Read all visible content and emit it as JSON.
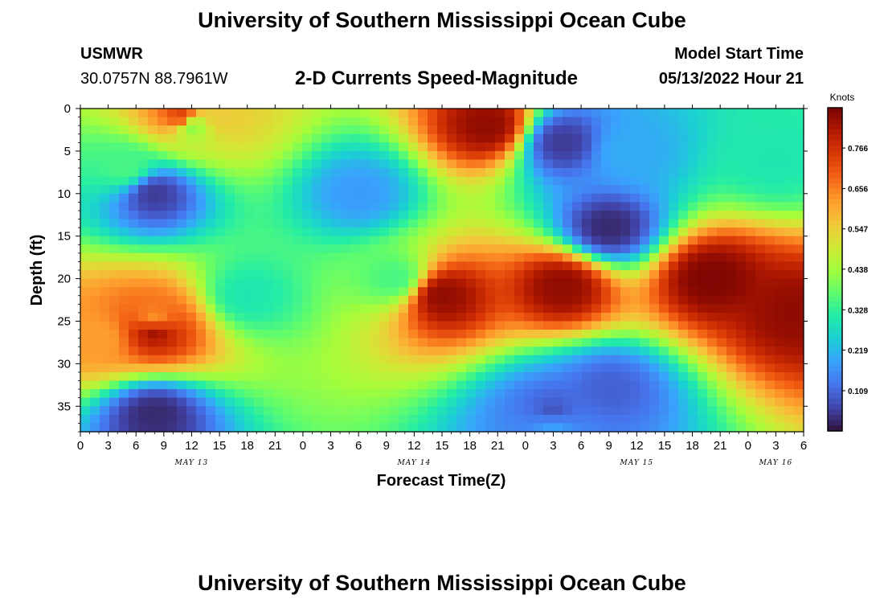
{
  "header": {
    "title": "University of Southern Mississippi Ocean Cube",
    "station": "USMWR",
    "coords": "30.0757N  88.7961W",
    "subtitle": "2-D Currents Speed-Magnitude",
    "model_label": "Model Start Time",
    "model_time": "05/13/2022 Hour 21"
  },
  "footer": {
    "title": "University of Southern Mississippi Ocean Cube"
  },
  "colors": {
    "background": "#ffffff",
    "colormap": [
      "#30123b",
      "#4145ab",
      "#4675ed",
      "#39a2fc",
      "#1bcfd4",
      "#24eca6",
      "#61fc6c",
      "#a4fc3b",
      "#d1e834",
      "#f3c63a",
      "#fe9b2d",
      "#f36315",
      "#d93806",
      "#b11901",
      "#7a0402"
    ]
  },
  "chart_data": {
    "type": "heatmap",
    "title": "2-D Currents Speed-Magnitude",
    "xlabel": "Forecast Time(Z)",
    "ylabel": "Depth (ft)",
    "x_tick_labels": [
      "0",
      "3",
      "6",
      "9",
      "12",
      "15",
      "18",
      "21",
      "0",
      "3",
      "6",
      "9",
      "12",
      "15",
      "18",
      "21",
      "0",
      "3",
      "6",
      "9",
      "12",
      "15",
      "18",
      "21",
      "0",
      "3",
      "6"
    ],
    "x_range_hours": [
      0,
      78
    ],
    "date_labels": [
      {
        "text": "MAY 13",
        "hour": 12
      },
      {
        "text": "MAY 14",
        "hour": 36
      },
      {
        "text": "MAY 15",
        "hour": 60
      },
      {
        "text": "MAY 16",
        "hour": 75
      }
    ],
    "y_ticks": [
      0,
      5,
      10,
      15,
      20,
      25,
      30,
      35
    ],
    "ylim": [
      0,
      38
    ],
    "y_inverted": true,
    "colorbar": {
      "title": "Knots",
      "ticks": [
        "0.766",
        "0.656",
        "0.547",
        "0.438",
        "0.328",
        "0.219",
        "0.109"
      ],
      "tick_values": [
        0.766,
        0.656,
        0.547,
        0.438,
        0.328,
        0.219,
        0.109
      ],
      "range": [
        0,
        0.875
      ]
    },
    "field_features": [
      {
        "hour": 8,
        "depth": 10,
        "speed": 0.05
      },
      {
        "hour": 15,
        "depth": 1,
        "speed": 0.55
      },
      {
        "hour": 18,
        "depth": 22,
        "speed": 0.3
      },
      {
        "hour": 30,
        "depth": 10,
        "speed": 0.18
      },
      {
        "hour": 34,
        "depth": 20,
        "speed": 0.35
      },
      {
        "hour": 2,
        "depth": 27,
        "speed": 0.62
      },
      {
        "hour": 8,
        "depth": 25,
        "speed": 0.62
      },
      {
        "hour": 8,
        "depth": 36,
        "speed": 0.03
      },
      {
        "hour": 5,
        "depth": 7,
        "speed": 0.35
      },
      {
        "hour": 12,
        "depth": 2,
        "speed": 0.4
      },
      {
        "hour": 11,
        "depth": 1,
        "speed": 0.75
      },
      {
        "hour": 8,
        "depth": 26,
        "speed": 0.85
      },
      {
        "hour": 39,
        "depth": 22,
        "speed": 0.85
      },
      {
        "hour": 44,
        "depth": 2,
        "speed": 0.85
      },
      {
        "hour": 52,
        "depth": 21,
        "speed": 0.85
      },
      {
        "hour": 52,
        "depth": 4,
        "speed": 0.05
      },
      {
        "hour": 57,
        "depth": 14,
        "speed": 0.03
      },
      {
        "hour": 51,
        "depth": 37,
        "speed": 0.2
      },
      {
        "hour": 57,
        "depth": 33,
        "speed": 0.1
      },
      {
        "hour": 51,
        "depth": 36,
        "speed": 0.07
      },
      {
        "hour": 59,
        "depth": 5,
        "speed": 0.2
      },
      {
        "hour": 68,
        "depth": 20,
        "speed": 0.87
      },
      {
        "hour": 77,
        "depth": 24,
        "speed": 0.85
      },
      {
        "hour": 75,
        "depth": 6,
        "speed": 0.3
      }
    ]
  }
}
